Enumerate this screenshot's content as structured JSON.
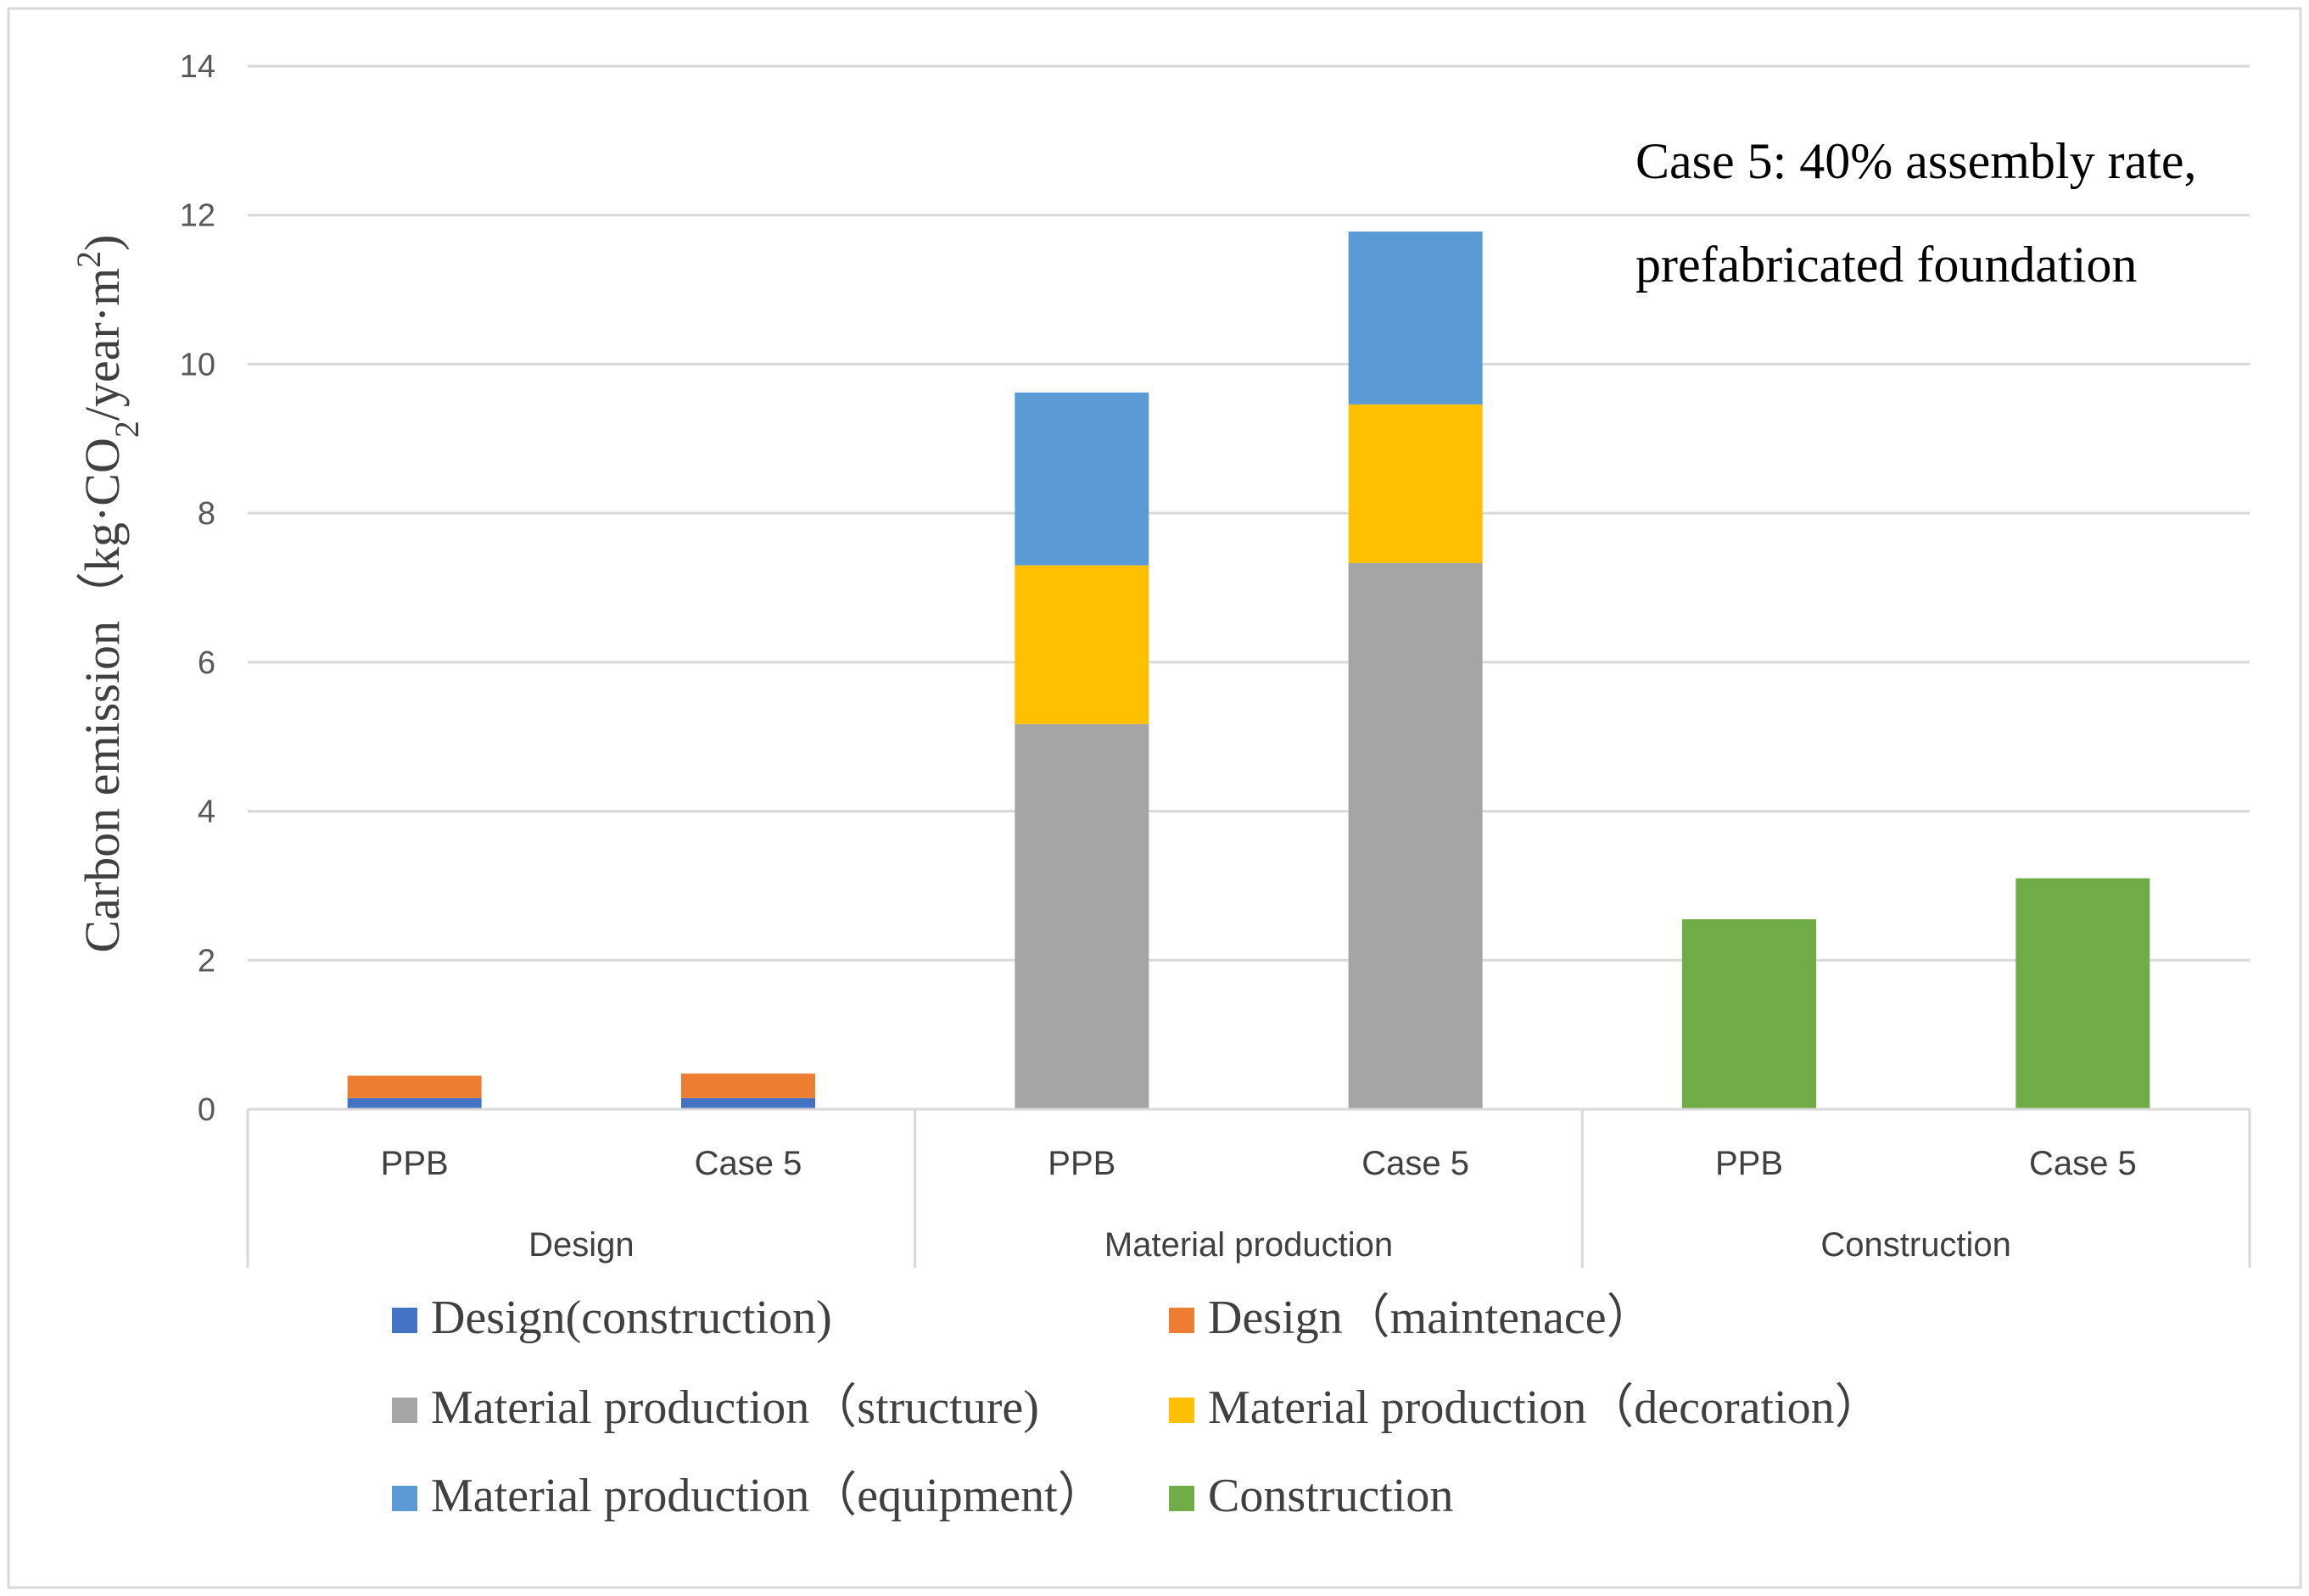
{
  "chart_data": {
    "type": "bar",
    "stacked": true,
    "ylabel_parts": [
      "Carbon emission（kg·CO",
      "2",
      "/year·m",
      "2",
      ")"
    ],
    "ylim": [
      0,
      14
    ],
    "yticks": [
      0,
      2,
      4,
      6,
      8,
      10,
      12,
      14
    ],
    "grid": true,
    "legend_position": "bottom",
    "annotation": [
      "Case 5: 40% assembly rate,",
      "prefabricated foundation"
    ],
    "groups": [
      "Design",
      "Material production",
      "Construction"
    ],
    "categories": [
      "PPB",
      "Case 5",
      "PPB",
      "Case 5",
      "PPB",
      "Case 5"
    ],
    "series": [
      {
        "name": "Design(construction)",
        "color": "#4472C4",
        "values": [
          0.15,
          0.15,
          0,
          0,
          0,
          0
        ]
      },
      {
        "name": "Design（maintenace）",
        "color": "#ED7D31",
        "values": [
          0.3,
          0.33,
          0,
          0,
          0,
          0
        ]
      },
      {
        "name": "Material production（structure)",
        "color": "#A5A5A5",
        "values": [
          0,
          0,
          5.17,
          7.33,
          0,
          0
        ]
      },
      {
        "name": "Material production（decoration）",
        "color": "#FFC000",
        "values": [
          0,
          0,
          2.13,
          2.13,
          0,
          0
        ]
      },
      {
        "name": "Material production（equipment）",
        "color": "#5B9BD5",
        "values": [
          0,
          0,
          2.32,
          2.32,
          0,
          0
        ]
      },
      {
        "name": "Construction",
        "color": "#70AD47",
        "values": [
          0,
          0,
          0,
          0,
          2.55,
          3.1
        ]
      }
    ]
  }
}
